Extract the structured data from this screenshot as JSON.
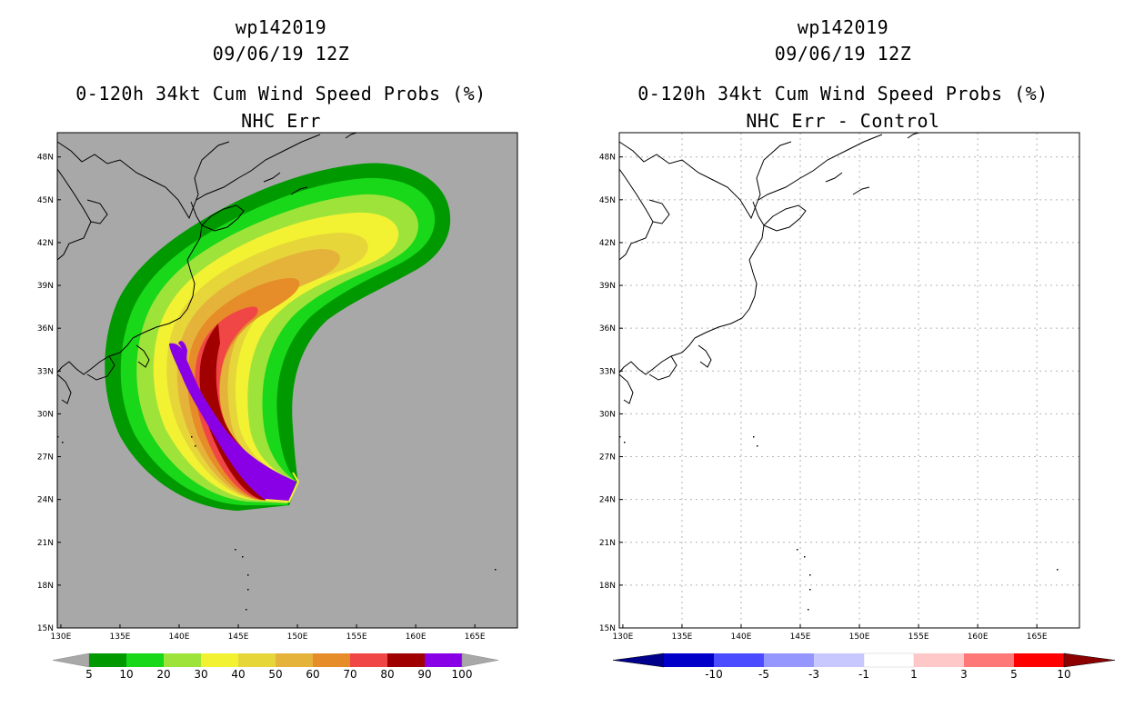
{
  "left": {
    "title1": "wp142019",
    "title2": "09/06/19 12Z",
    "title3": "0-120h 34kt Cum Wind Speed Probs (%)",
    "title4": "NHC Err",
    "background_color": "#a8a8a8",
    "colorbar": {
      "labels": [
        "5",
        "10",
        "20",
        "30",
        "40",
        "50",
        "60",
        "70",
        "80",
        "90",
        "100"
      ],
      "colors": [
        "#009a00",
        "#19d719",
        "#9ee33a",
        "#f2f233",
        "#e6d63a",
        "#e6b33a",
        "#e68c28",
        "#f04646",
        "#a00000",
        "#8a00e6"
      ],
      "end_color": "#a8a8a8"
    },
    "probability_contours": [
      {
        "level": "5",
        "color": "#009a00"
      },
      {
        "level": "10",
        "color": "#19d719"
      },
      {
        "level": "20",
        "color": "#9ee33a"
      },
      {
        "level": "30",
        "color": "#f2f233"
      },
      {
        "level": "40",
        "color": "#e6d63a"
      },
      {
        "level": "50",
        "color": "#e6b33a"
      },
      {
        "level": "60",
        "color": "#e68c28"
      },
      {
        "level": "70",
        "color": "#f04646"
      },
      {
        "level": "80",
        "color": "#a00000"
      },
      {
        "level": "90",
        "color": "#8a00e6"
      }
    ]
  },
  "right": {
    "title1": "wp142019",
    "title2": "09/06/19 12Z",
    "title3": "0-120h 34kt Cum Wind Speed Probs (%)",
    "title4": "NHC Err - Control",
    "background_color": "#ffffff",
    "colorbar": {
      "labels": [
        "-10",
        "-5",
        "-3",
        "-1",
        "1",
        "3",
        "5",
        "10"
      ],
      "colors": [
        "#0000c8",
        "#4b4bff",
        "#9696ff",
        "#c8c8ff",
        "#ffffff",
        "#ffc8c8",
        "#ff7878",
        "#ff0000",
        "#b40000"
      ],
      "start_color": "#00008c",
      "end_color": "#8c0000"
    }
  },
  "axes": {
    "lon_labels": [
      "130E",
      "135E",
      "140E",
      "145E",
      "150E",
      "155E",
      "160E",
      "165E"
    ],
    "lat_labels": [
      "48N",
      "45N",
      "42N",
      "39N",
      "36N",
      "33N",
      "30N",
      "27N",
      "24N",
      "21N",
      "18N",
      "15N"
    ],
    "lon_values": [
      130,
      135,
      140,
      145,
      150,
      155,
      160,
      165
    ],
    "lat_values": [
      48,
      45,
      42,
      39,
      36,
      33,
      30,
      27,
      24,
      21,
      18,
      15
    ],
    "lon_range": [
      129.7,
      168.6
    ],
    "lat_range": [
      15,
      49.7
    ]
  }
}
